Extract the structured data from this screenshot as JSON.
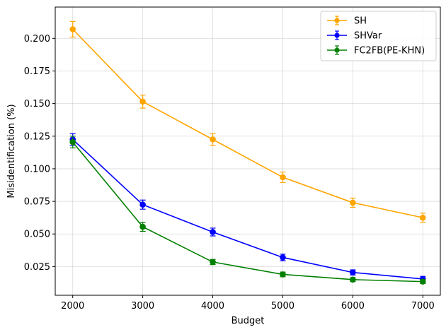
{
  "chart_data": {
    "type": "line",
    "title": "",
    "xlabel": "Budget",
    "ylabel": "Misidentification (%)",
    "x": [
      2000,
      3000,
      4000,
      5000,
      6000,
      7000
    ],
    "xticks": [
      2000,
      3000,
      4000,
      5000,
      6000,
      7000
    ],
    "xlim": [
      1750,
      7250
    ],
    "yticks": [
      0.025,
      0.05,
      0.075,
      0.1,
      0.125,
      0.15,
      0.175,
      0.2
    ],
    "ytick_labels": [
      "0.025",
      "0.050",
      "0.075",
      "0.100",
      "0.125",
      "0.150",
      "0.175",
      "0.200"
    ],
    "ylim": [
      0.003,
      0.224
    ],
    "grid": true,
    "legend_position": "top-right",
    "error_bars": true,
    "series": [
      {
        "name": "SH",
        "color": "#ffa500",
        "values": [
          0.207,
          0.1515,
          0.1225,
          0.0935,
          0.074,
          0.0625
        ],
        "errors": [
          0.006,
          0.005,
          0.0045,
          0.004,
          0.0035,
          0.0035
        ]
      },
      {
        "name": "SHVar",
        "color": "#0000ff",
        "values": [
          0.1225,
          0.0725,
          0.0515,
          0.032,
          0.0205,
          0.0155
        ],
        "errors": [
          0.0045,
          0.0035,
          0.003,
          0.0025,
          0.002,
          0.002
        ]
      },
      {
        "name": "FC2FB(PE-KHN)",
        "color": "#008000",
        "values": [
          0.1205,
          0.0555,
          0.0285,
          0.019,
          0.015,
          0.0135
        ],
        "errors": [
          0.0045,
          0.0035,
          0.002,
          0.0018,
          0.0015,
          0.0015
        ]
      }
    ]
  }
}
